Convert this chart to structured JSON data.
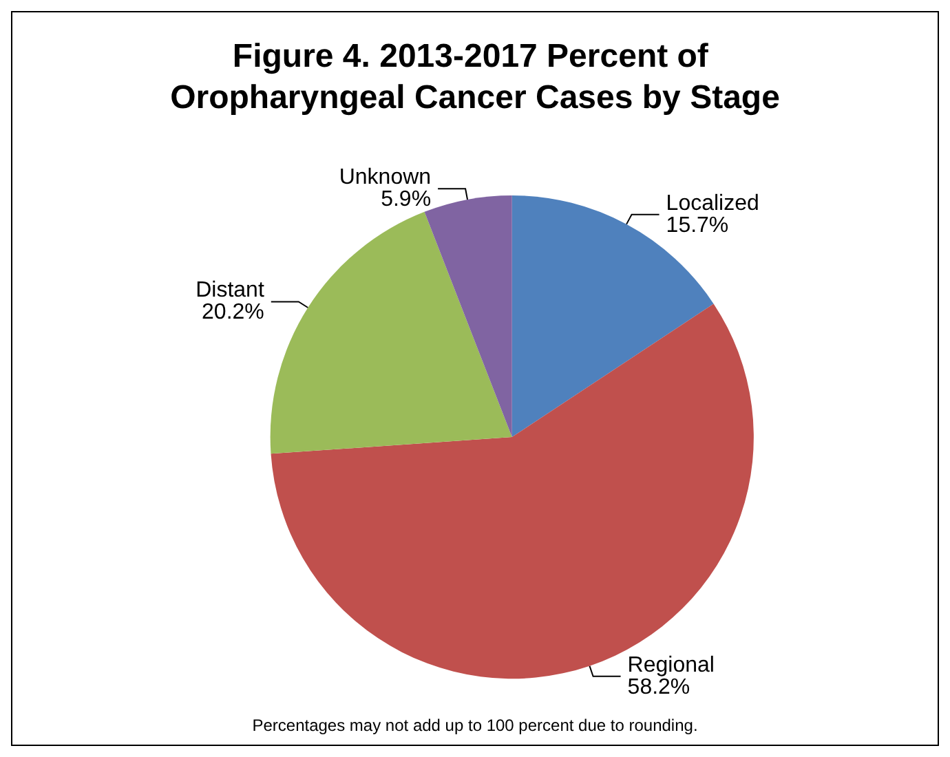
{
  "chart_data": {
    "type": "pie",
    "title": "Figure 4. 2013-2017 Percent of Oropharyngeal Cancer Cases by Stage",
    "categories": [
      "Localized",
      "Regional",
      "Distant",
      "Unknown"
    ],
    "values": [
      15.7,
      58.2,
      20.2,
      5.9
    ],
    "value_labels": [
      "15.7%",
      "58.2%",
      "20.2%",
      "5.9%"
    ],
    "colors": [
      "#4f81bd",
      "#c0504d",
      "#9bbb59",
      "#8064a2"
    ],
    "legend": false,
    "annotations": [
      "Percentages may not add up to 100 percent due to rounding."
    ]
  }
}
